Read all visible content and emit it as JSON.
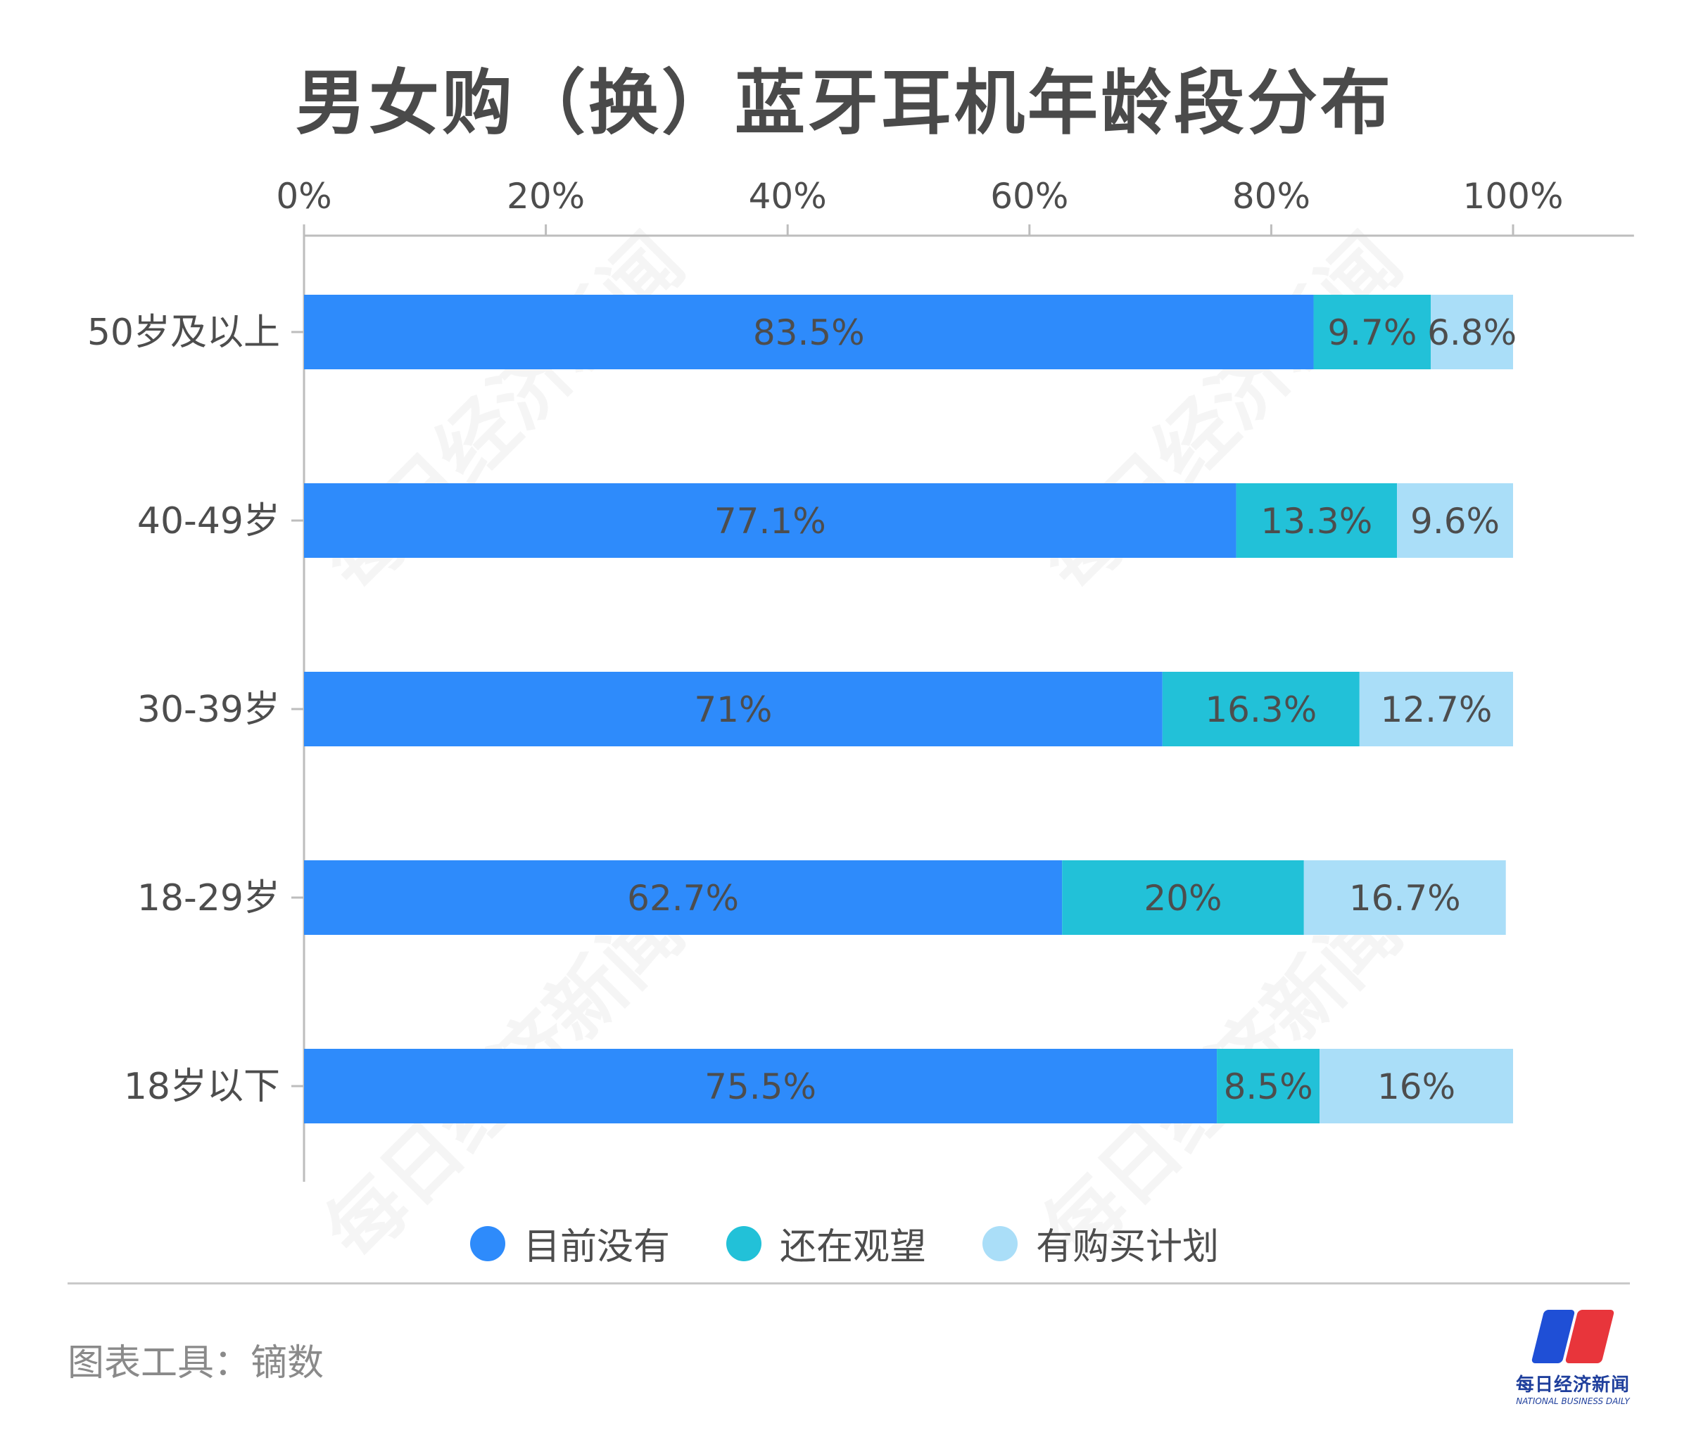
{
  "title": "男女购（换）蓝牙耳机年龄段分布",
  "source": "图表工具：镝数",
  "watermark": "每日经济新闻",
  "logo": {
    "cn": "每日经济新闻",
    "en": "NATIONAL BUSINESS DAILY"
  },
  "colors": {
    "no_plan": "#2e8bfb",
    "watching": "#22c1d8",
    "plan": "#aadef8",
    "text": "#4d4d4d",
    "axis": "#bdbdbd"
  },
  "legend": [
    {
      "label": "目前没有",
      "color": "#2e8bfb"
    },
    {
      "label": "还在观望",
      "color": "#22c1d8"
    },
    {
      "label": "有购买计划",
      "color": "#aadef8"
    }
  ],
  "chart_data": {
    "type": "bar",
    "orientation": "horizontal",
    "stacked": true,
    "categories": [
      "50岁及以上",
      "40-49岁",
      "30-39岁",
      "18-29岁",
      "18岁以下"
    ],
    "series": [
      {
        "name": "目前没有",
        "values": [
          83.5,
          77.1,
          71,
          62.7,
          75.5
        ],
        "labels": [
          "83.5%",
          "77.1%",
          "71%",
          "62.7%",
          "75.5%"
        ]
      },
      {
        "name": "还在观望",
        "values": [
          9.7,
          13.3,
          16.3,
          20,
          8.5
        ],
        "labels": [
          "9.7%",
          "13.3%",
          "16.3%",
          "20%",
          "8.5%"
        ]
      },
      {
        "name": "有购买计划",
        "values": [
          6.8,
          9.6,
          12.7,
          16.7,
          16
        ],
        "labels": [
          "6.8%",
          "9.6%",
          "12.7%",
          "16.7%",
          "16%"
        ]
      }
    ],
    "x_ticks": [
      "0%",
      "20%",
      "40%",
      "60%",
      "80%",
      "100%"
    ],
    "xlim": [
      0,
      110
    ],
    "legend_position": "bottom"
  }
}
